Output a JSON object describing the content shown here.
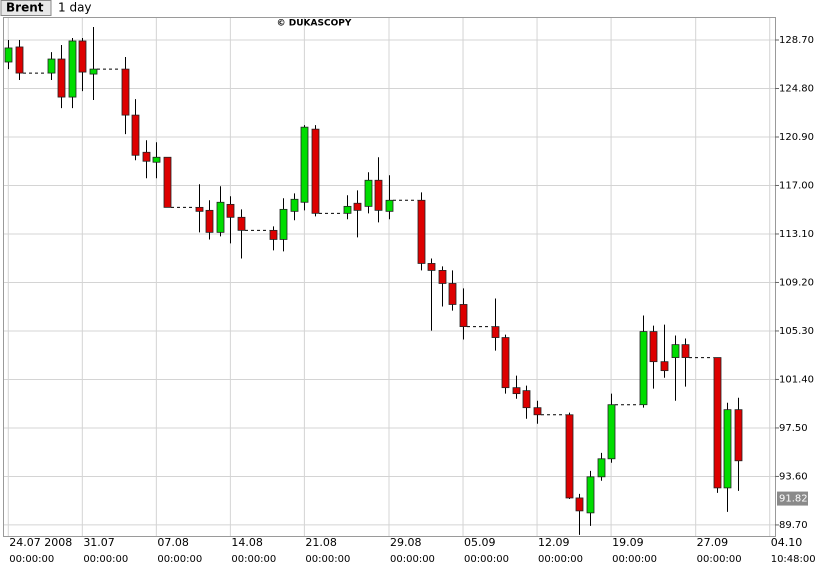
{
  "toolbar": {
    "symbol": "Brent",
    "period": "1 day"
  },
  "chart_data": {
    "type": "candlestick",
    "watermark": "© DUKASCOPY",
    "x": [
      0,
      1,
      4,
      5,
      6,
      7,
      8,
      11,
      12,
      13,
      14,
      15,
      18,
      19,
      20,
      21,
      22,
      25,
      26,
      27,
      28,
      29,
      32,
      33,
      34,
      35,
      36,
      39,
      40,
      41,
      42,
      43,
      46,
      47,
      48,
      49,
      50,
      53,
      54,
      55,
      56,
      57,
      60,
      61,
      62,
      63,
      64,
      67,
      68,
      69
    ],
    "open": [
      126.93,
      128.14,
      126.04,
      127.17,
      124.11,
      128.62,
      125.96,
      126.36,
      122.66,
      119.67,
      118.87,
      119.27,
      115.24,
      115.0,
      113.23,
      115.48,
      114.44,
      113.39,
      112.66,
      114.92,
      115.65,
      121.53,
      114.76,
      115.57,
      115.32,
      117.42,
      114.92,
      115.81,
      110.73,
      110.17,
      109.12,
      107.43,
      105.65,
      104.77,
      100.74,
      100.5,
      99.13,
      98.56,
      91.87,
      90.67,
      93.57,
      95.02,
      99.37,
      105.25,
      102.83,
      103.16,
      104.2,
      103.16,
      92.68,
      98.97
    ],
    "high": [
      128.7,
      128.7,
      127.73,
      128.3,
      128.86,
      128.86,
      129.75,
      127.33,
      123.95,
      120.64,
      120.48,
      119.27,
      117.1,
      115.81,
      116.94,
      116.13,
      115.08,
      113.71,
      115.97,
      116.37,
      121.85,
      121.85,
      116.21,
      116.61,
      118.06,
      119.27,
      117.82,
      116.45,
      111.13,
      110.49,
      110.17,
      108.72,
      107.91,
      105.01,
      101.71,
      100.9,
      99.69,
      98.73,
      92.2,
      94.05,
      95.5,
      100.26,
      106.54,
      105.73,
      105.81,
      104.93,
      104.69,
      103.16,
      99.53,
      99.93
    ],
    "low": [
      126.36,
      125.48,
      125.48,
      123.22,
      123.22,
      124.59,
      123.87,
      121.13,
      119.03,
      117.58,
      117.58,
      115.24,
      113.23,
      112.66,
      112.91,
      112.34,
      111.13,
      111.78,
      111.7,
      114.2,
      115.0,
      114.52,
      114.28,
      112.83,
      114.76,
      114.03,
      114.28,
      110.17,
      105.33,
      107.27,
      106.94,
      104.61,
      103.72,
      100.26,
      99.85,
      98.24,
      97.84,
      91.79,
      88.9,
      89.62,
      93.25,
      94.7,
      99.13,
      100.66,
      101.54,
      99.69,
      100.82,
      92.28,
      90.75,
      92.44
    ],
    "close": [
      128.06,
      126.04,
      127.17,
      124.11,
      128.62,
      126.12,
      126.36,
      122.66,
      119.43,
      118.95,
      119.27,
      115.24,
      114.92,
      113.23,
      115.65,
      114.44,
      113.39,
      112.66,
      115.08,
      115.89,
      121.69,
      114.76,
      115.32,
      115.0,
      117.42,
      115.0,
      115.81,
      110.73,
      110.17,
      109.12,
      107.43,
      105.65,
      104.77,
      100.74,
      100.26,
      99.13,
      98.56,
      91.87,
      90.83,
      93.57,
      95.02,
      99.37,
      105.25,
      102.83,
      102.11,
      104.2,
      103.16,
      92.68,
      98.97,
      94.86
    ],
    "up_color": "#00dd00",
    "down_color": "#dd0000",
    "last_price": 91.82,
    "xlim": [
      -0.5,
      72.5
    ],
    "xticks": [
      {
        "value": 0,
        "label": "24.07 2008"
      },
      {
        "value": 7,
        "label": "31.07"
      },
      {
        "value": 14,
        "label": "07.08"
      },
      {
        "value": 21,
        "label": "14.08"
      },
      {
        "value": 28,
        "label": "21.08"
      },
      {
        "value": 36,
        "label": "29.08"
      },
      {
        "value": 43,
        "label": "05.09"
      },
      {
        "value": 50,
        "label": "12.09"
      },
      {
        "value": 57,
        "label": "19.09"
      },
      {
        "value": 65,
        "label": "27.09"
      },
      {
        "value": 72,
        "label": "04.10"
      }
    ],
    "xtick_times": [
      "00:00:00",
      "00:00:00",
      "00:00:00",
      "00:00:00",
      "00:00:00",
      "00:00:00",
      "00:00:00",
      "00:00:00",
      "00:00:00",
      "00:00:00",
      "10:48:00"
    ],
    "ylim": [
      88.81,
      130.55
    ],
    "yticks": [
      {
        "value": 89.7,
        "label": "89.70"
      },
      {
        "value": 93.6,
        "label": "93.60"
      },
      {
        "value": 97.5,
        "label": "97.50"
      },
      {
        "value": 101.4,
        "label": "101.40"
      },
      {
        "value": 105.3,
        "label": "105.30"
      },
      {
        "value": 109.2,
        "label": "109.20"
      },
      {
        "value": 113.1,
        "label": "113.10"
      },
      {
        "value": 117.0,
        "label": "117.00"
      },
      {
        "value": 120.9,
        "label": "120.90"
      },
      {
        "value": 124.8,
        "label": "124.80"
      },
      {
        "value": 128.7,
        "label": "128.70"
      }
    ],
    "grid": true
  }
}
